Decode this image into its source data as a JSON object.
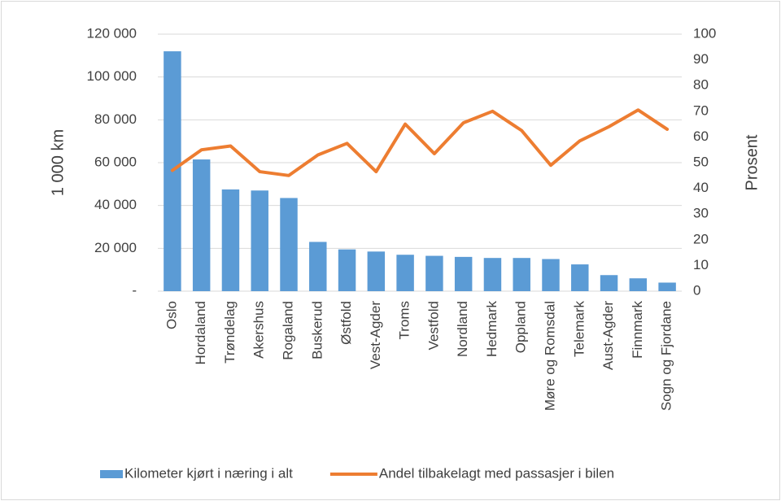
{
  "chart_data": {
    "type": "bar",
    "y_label": "1 000 km",
    "y2_label": "Prosent",
    "categories": [
      "Oslo",
      "Hordaland",
      "Trøndelag",
      "Akershus",
      "Rogaland",
      "Buskerud",
      "Østfold",
      "Vest-Agder",
      "Troms",
      "Vestfold",
      "Nordland",
      "Hedmark",
      "Oppland",
      "Møre og Romsdal",
      "Telemark",
      "Aust-Agder",
      "Finnmark",
      "Sogn og Fjordane"
    ],
    "series": [
      {
        "name": "Kilometer kjørt i næring i alt",
        "type": "bar",
        "color": "#5b9bd5",
        "values": [
          112000,
          61500,
          47500,
          47000,
          43500,
          23000,
          19500,
          18500,
          17000,
          16500,
          16000,
          15500,
          15500,
          15000,
          12500,
          7500,
          6000,
          4000
        ]
      },
      {
        "name": "Andel tilbakelagt med passasjer i bilen",
        "type": "line",
        "axis": "y2",
        "color": "#ed7d31",
        "values": [
          47,
          55,
          56.5,
          46.5,
          45,
          53,
          57.5,
          46.5,
          65,
          53.5,
          65.5,
          70,
          62.5,
          49,
          58.5,
          64,
          70.5,
          63
        ]
      }
    ],
    "ylim": [
      0,
      120000
    ],
    "yticks": [
      {
        "value": 0,
        "label": "-"
      },
      {
        "value": 20000,
        "label": "20 000"
      },
      {
        "value": 40000,
        "label": "40 000"
      },
      {
        "value": 60000,
        "label": "60 000"
      },
      {
        "value": 80000,
        "label": "80 000"
      },
      {
        "value": 100000,
        "label": "100 000"
      },
      {
        "value": 120000,
        "label": "120 000"
      }
    ],
    "y2lim": [
      0,
      100
    ],
    "y2ticks": [
      0,
      10,
      20,
      30,
      40,
      50,
      60,
      70,
      80,
      90,
      100
    ],
    "grid": true,
    "legend": "bottom"
  }
}
